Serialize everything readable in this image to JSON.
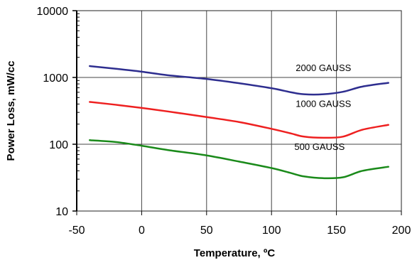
{
  "chart_data": {
    "type": "line",
    "title": "",
    "xlabel": "Temperature, ºC",
    "ylabel": "Power Loss, mW/cc",
    "xlim": [
      -50,
      200
    ],
    "ylim": [
      10,
      10000
    ],
    "y_scale": "log",
    "x_ticks": [
      -50,
      0,
      50,
      100,
      150,
      200
    ],
    "x_tick_labels": [
      "-50",
      "0",
      "50",
      "100",
      "150",
      "200"
    ],
    "y_ticks": [
      10,
      100,
      1000,
      10000
    ],
    "y_tick_labels": [
      "10",
      "100",
      "1000",
      "10000"
    ],
    "grid": true,
    "legend": "none",
    "series": [
      {
        "color": "#2e2e8f",
        "x": [
          -40,
          -20,
          0,
          20,
          50,
          75,
          100,
          115,
          125,
          140,
          155,
          170,
          190
        ],
        "y": [
          1480,
          1350,
          1220,
          1080,
          950,
          820,
          690,
          600,
          560,
          560,
          610,
          730,
          830
        ]
      },
      {
        "color": "#ee2020",
        "x": [
          -40,
          -20,
          0,
          20,
          50,
          75,
          100,
          115,
          125,
          140,
          155,
          170,
          190
        ],
        "y": [
          430,
          390,
          350,
          310,
          255,
          215,
          170,
          145,
          130,
          125,
          130,
          165,
          195
        ]
      },
      {
        "color": "#1a8a1a",
        "x": [
          -40,
          -20,
          0,
          20,
          50,
          75,
          100,
          115,
          125,
          140,
          155,
          170,
          190
        ],
        "y": [
          115,
          108,
          95,
          82,
          68,
          55,
          44,
          37,
          33,
          31,
          32,
          40,
          46
        ]
      }
    ],
    "annotations": [
      {
        "text": "2000 GAUSS",
        "x": 140,
        "y": 1250
      },
      {
        "text": "1000 GAUSS",
        "x": 140,
        "y": 360
      },
      {
        "text": "500 GAUSS",
        "x": 137,
        "y": 82
      }
    ]
  }
}
